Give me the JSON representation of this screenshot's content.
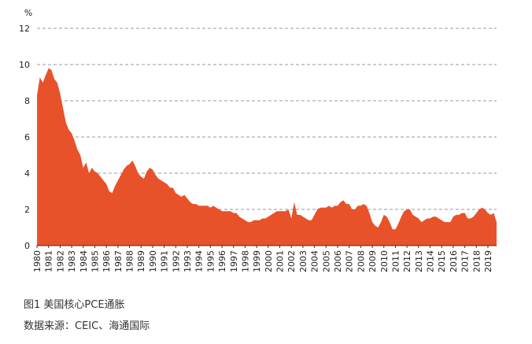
{
  "chart_data": {
    "type": "area",
    "y_unit": "%",
    "color": "#e8522a",
    "grid": true,
    "caption": "图1  美国核心PCE通胀",
    "source": "数据来源：CEIC、海通国际",
    "x": [
      1980,
      1980.25,
      1980.5,
      1980.75,
      1981,
      1981.25,
      1981.5,
      1981.75,
      1982,
      1982.25,
      1982.5,
      1982.75,
      1983,
      1983.25,
      1983.5,
      1983.75,
      1984,
      1984.25,
      1984.5,
      1984.75,
      1985,
      1985.25,
      1985.5,
      1985.75,
      1986,
      1986.25,
      1986.5,
      1986.75,
      1987,
      1987.25,
      1987.5,
      1987.75,
      1988,
      1988.25,
      1988.5,
      1988.75,
      1989,
      1989.25,
      1989.5,
      1989.75,
      1990,
      1990.25,
      1990.5,
      1990.75,
      1991,
      1991.25,
      1991.5,
      1991.75,
      1992,
      1992.25,
      1992.5,
      1992.75,
      1993,
      1993.25,
      1993.5,
      1993.75,
      1994,
      1994.25,
      1994.5,
      1994.75,
      1995,
      1995.25,
      1995.5,
      1995.75,
      1996,
      1996.25,
      1996.5,
      1996.75,
      1997,
      1997.25,
      1997.5,
      1997.75,
      1998,
      1998.25,
      1998.5,
      1998.75,
      1999,
      1999.25,
      1999.5,
      1999.75,
      2000,
      2000.25,
      2000.5,
      2000.75,
      2001,
      2001.25,
      2001.5,
      2001.75,
      2002,
      2002.25,
      2002.5,
      2002.75,
      2003,
      2003.25,
      2003.5,
      2003.75,
      2004,
      2004.25,
      2004.5,
      2004.75,
      2005,
      2005.25,
      2005.5,
      2005.75,
      2006,
      2006.25,
      2006.5,
      2006.75,
      2007,
      2007.25,
      2007.5,
      2007.75,
      2008,
      2008.25,
      2008.5,
      2008.75,
      2009,
      2009.25,
      2009.5,
      2009.75,
      2010,
      2010.25,
      2010.5,
      2010.75,
      2011,
      2011.25,
      2011.5,
      2011.75,
      2012,
      2012.25,
      2012.5,
      2012.75,
      2013,
      2013.25,
      2013.5,
      2013.75,
      2014,
      2014.25,
      2014.5,
      2014.75,
      2015,
      2015.25,
      2015.5,
      2015.75,
      2016,
      2016.25,
      2016.5,
      2016.75,
      2017,
      2017.25,
      2017.5,
      2017.75,
      2018,
      2018.25,
      2018.5,
      2018.75,
      2019,
      2019.25,
      2019.5,
      2019.75
    ],
    "values": [
      8.3,
      9.3,
      9.0,
      9.4,
      9.8,
      9.7,
      9.2,
      9.0,
      8.4,
      7.6,
      6.8,
      6.4,
      6.2,
      5.8,
      5.3,
      5.0,
      4.3,
      4.6,
      4.0,
      4.3,
      4.1,
      4.0,
      3.8,
      3.6,
      3.4,
      3.0,
      2.9,
      3.3,
      3.6,
      3.9,
      4.2,
      4.4,
      4.5,
      4.7,
      4.4,
      4.0,
      3.8,
      3.7,
      4.1,
      4.3,
      4.2,
      3.9,
      3.7,
      3.6,
      3.5,
      3.4,
      3.2,
      3.2,
      2.9,
      2.8,
      2.7,
      2.8,
      2.6,
      2.4,
      2.3,
      2.3,
      2.2,
      2.2,
      2.2,
      2.2,
      2.1,
      2.2,
      2.1,
      2.0,
      1.9,
      1.9,
      1.9,
      1.9,
      1.8,
      1.8,
      1.6,
      1.5,
      1.4,
      1.3,
      1.3,
      1.4,
      1.4,
      1.4,
      1.5,
      1.5,
      1.6,
      1.7,
      1.8,
      1.9,
      1.9,
      1.9,
      1.9,
      2.0,
      1.5,
      2.4,
      1.7,
      1.7,
      1.6,
      1.5,
      1.4,
      1.4,
      1.7,
      2.0,
      2.1,
      2.1,
      2.1,
      2.2,
      2.1,
      2.2,
      2.2,
      2.4,
      2.5,
      2.3,
      2.3,
      2.0,
      2.0,
      2.2,
      2.2,
      2.3,
      2.2,
      1.8,
      1.3,
      1.1,
      1.0,
      1.3,
      1.7,
      1.6,
      1.3,
      0.9,
      0.9,
      1.2,
      1.6,
      1.9,
      2.0,
      2.0,
      1.7,
      1.6,
      1.5,
      1.3,
      1.4,
      1.5,
      1.5,
      1.6,
      1.6,
      1.5,
      1.4,
      1.3,
      1.3,
      1.3,
      1.6,
      1.7,
      1.7,
      1.8,
      1.8,
      1.5,
      1.5,
      1.6,
      1.8,
      2.0,
      2.1,
      2.0,
      1.8,
      1.7,
      1.8,
      1.3
    ],
    "xlim": [
      1980,
      2019.75
    ],
    "xticks": [
      1980,
      1981,
      1982,
      1983,
      1984,
      1985,
      1986,
      1987,
      1988,
      1989,
      1990,
      1991,
      1992,
      1993,
      1994,
      1995,
      1996,
      1997,
      1998,
      1999,
      2000,
      2001,
      2002,
      2003,
      2004,
      2005,
      2006,
      2007,
      2008,
      2009,
      2010,
      2011,
      2012,
      2013,
      2014,
      2015,
      2016,
      2017,
      2018,
      2019
    ],
    "ylim": [
      0,
      12
    ],
    "yticks": [
      0,
      2,
      4,
      6,
      8,
      10,
      12
    ]
  }
}
